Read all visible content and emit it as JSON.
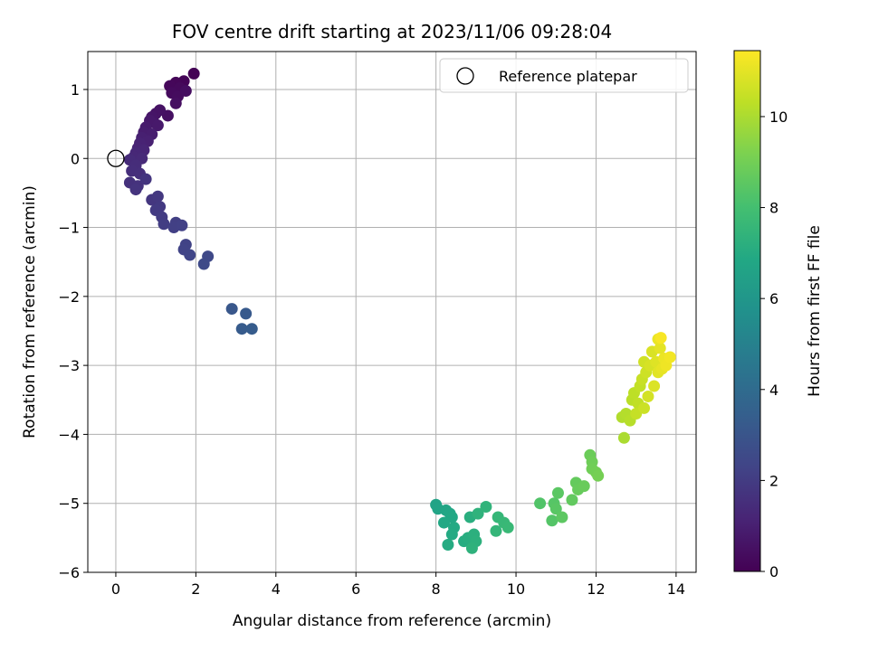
{
  "chart_data": {
    "type": "scatter",
    "title": "FOV centre drift starting at 2023/11/06 09:28:04",
    "xlabel": "Angular distance from reference (arcmin)",
    "ylabel": "Rotation from reference (arcmin)",
    "xlim": [
      -0.7,
      14.5
    ],
    "ylim": [
      -6.0,
      1.55
    ],
    "xticks": [
      0,
      2,
      4,
      6,
      8,
      10,
      12,
      14
    ],
    "yticks": [
      1,
      0,
      -1,
      -2,
      -3,
      -4,
      -5,
      -6
    ],
    "xtick_labels": [
      "0",
      "2",
      "4",
      "6",
      "8",
      "10",
      "12",
      "14"
    ],
    "ytick_labels": [
      "1",
      "0",
      "−1",
      "−2",
      "−3",
      "−4",
      "−5",
      "−6"
    ],
    "grid": true,
    "legend": {
      "position": "top-right",
      "entries": [
        {
          "label": "Reference platepar",
          "marker": "open-circle"
        }
      ]
    },
    "reference_point": {
      "x": 0,
      "y": 0,
      "name": "Reference platepar"
    },
    "colorbar": {
      "label": "Hours from first FF file",
      "range": [
        0,
        11.45
      ],
      "ticks": [
        0,
        2,
        4,
        6,
        8,
        10
      ],
      "tick_labels": [
        "0",
        "2",
        "4",
        "6",
        "8",
        "10"
      ],
      "colormap": "viridis"
    },
    "points": [
      {
        "x": 1.95,
        "y": 1.23,
        "h": 0.05
      },
      {
        "x": 1.7,
        "y": 1.12,
        "h": 0.1
      },
      {
        "x": 1.5,
        "y": 1.1,
        "h": 0.15
      },
      {
        "x": 1.35,
        "y": 1.05,
        "h": 0.2
      },
      {
        "x": 1.6,
        "y": 1.02,
        "h": 0.25
      },
      {
        "x": 1.4,
        "y": 0.95,
        "h": 0.3
      },
      {
        "x": 1.55,
        "y": 0.9,
        "h": 0.35
      },
      {
        "x": 1.75,
        "y": 0.98,
        "h": 0.4
      },
      {
        "x": 1.5,
        "y": 0.8,
        "h": 0.45
      },
      {
        "x": 1.3,
        "y": 0.62,
        "h": 0.5
      },
      {
        "x": 1.1,
        "y": 0.7,
        "h": 0.55
      },
      {
        "x": 1.0,
        "y": 0.65,
        "h": 0.6
      },
      {
        "x": 0.9,
        "y": 0.6,
        "h": 0.65
      },
      {
        "x": 0.95,
        "y": 0.52,
        "h": 0.7
      },
      {
        "x": 0.85,
        "y": 0.55,
        "h": 0.75
      },
      {
        "x": 1.05,
        "y": 0.48,
        "h": 0.8
      },
      {
        "x": 0.75,
        "y": 0.45,
        "h": 0.85
      },
      {
        "x": 0.7,
        "y": 0.38,
        "h": 0.9
      },
      {
        "x": 0.9,
        "y": 0.35,
        "h": 0.95
      },
      {
        "x": 0.65,
        "y": 0.3,
        "h": 1.0
      },
      {
        "x": 0.8,
        "y": 0.25,
        "h": 1.05
      },
      {
        "x": 0.6,
        "y": 0.22,
        "h": 1.1
      },
      {
        "x": 0.55,
        "y": 0.15,
        "h": 1.15
      },
      {
        "x": 0.7,
        "y": 0.12,
        "h": 1.2
      },
      {
        "x": 0.5,
        "y": 0.08,
        "h": 1.25
      },
      {
        "x": 0.45,
        "y": 0.02,
        "h": 1.3
      },
      {
        "x": 0.65,
        "y": 0.0,
        "h": 1.35
      },
      {
        "x": 0.35,
        "y": -0.02,
        "h": 1.4
      },
      {
        "x": 0.5,
        "y": -0.1,
        "h": 1.45
      },
      {
        "x": 0.4,
        "y": -0.18,
        "h": 1.5
      },
      {
        "x": 0.6,
        "y": -0.22,
        "h": 1.55
      },
      {
        "x": 0.35,
        "y": -0.35,
        "h": 1.6
      },
      {
        "x": 0.55,
        "y": -0.4,
        "h": 1.65
      },
      {
        "x": 0.5,
        "y": -0.45,
        "h": 1.7
      },
      {
        "x": 0.75,
        "y": -0.3,
        "h": 1.75
      },
      {
        "x": 0.9,
        "y": -0.6,
        "h": 1.8
      },
      {
        "x": 1.05,
        "y": -0.55,
        "h": 1.85
      },
      {
        "x": 1.1,
        "y": -0.7,
        "h": 1.9
      },
      {
        "x": 1.0,
        "y": -0.75,
        "h": 1.95
      },
      {
        "x": 1.15,
        "y": -0.85,
        "h": 2.0
      },
      {
        "x": 1.2,
        "y": -0.95,
        "h": 2.05
      },
      {
        "x": 1.5,
        "y": -0.93,
        "h": 2.1
      },
      {
        "x": 1.45,
        "y": -1.0,
        "h": 2.15
      },
      {
        "x": 1.65,
        "y": -0.97,
        "h": 2.2
      },
      {
        "x": 1.75,
        "y": -1.25,
        "h": 2.25
      },
      {
        "x": 1.7,
        "y": -1.32,
        "h": 2.3
      },
      {
        "x": 1.85,
        "y": -1.4,
        "h": 2.35
      },
      {
        "x": 2.3,
        "y": -1.42,
        "h": 2.5
      },
      {
        "x": 2.2,
        "y": -1.53,
        "h": 2.55
      },
      {
        "x": 2.9,
        "y": -2.18,
        "h": 3.1
      },
      {
        "x": 3.25,
        "y": -2.25,
        "h": 3.2
      },
      {
        "x": 3.15,
        "y": -2.47,
        "h": 3.25
      },
      {
        "x": 3.4,
        "y": -2.47,
        "h": 3.3
      },
      {
        "x": 8.0,
        "y": -5.02,
        "h": 6.6
      },
      {
        "x": 8.05,
        "y": -5.08,
        "h": 6.65
      },
      {
        "x": 8.25,
        "y": -5.1,
        "h": 6.7
      },
      {
        "x": 8.35,
        "y": -5.15,
        "h": 6.75
      },
      {
        "x": 8.4,
        "y": -5.2,
        "h": 6.8
      },
      {
        "x": 8.2,
        "y": -5.28,
        "h": 6.85
      },
      {
        "x": 8.45,
        "y": -5.35,
        "h": 6.9
      },
      {
        "x": 8.4,
        "y": -5.45,
        "h": 6.95
      },
      {
        "x": 8.3,
        "y": -5.6,
        "h": 7.0
      },
      {
        "x": 8.7,
        "y": -5.55,
        "h": 7.05
      },
      {
        "x": 8.8,
        "y": -5.5,
        "h": 7.1
      },
      {
        "x": 8.85,
        "y": -5.2,
        "h": 7.15
      },
      {
        "x": 8.95,
        "y": -5.45,
        "h": 7.2
      },
      {
        "x": 9.0,
        "y": -5.55,
        "h": 7.25
      },
      {
        "x": 8.9,
        "y": -5.65,
        "h": 7.3
      },
      {
        "x": 9.05,
        "y": -5.15,
        "h": 7.35
      },
      {
        "x": 9.25,
        "y": -5.05,
        "h": 7.4
      },
      {
        "x": 9.5,
        "y": -5.4,
        "h": 7.5
      },
      {
        "x": 9.55,
        "y": -5.2,
        "h": 7.55
      },
      {
        "x": 9.7,
        "y": -5.28,
        "h": 7.6
      },
      {
        "x": 9.8,
        "y": -5.35,
        "h": 7.65
      },
      {
        "x": 10.6,
        "y": -5.0,
        "h": 8.3
      },
      {
        "x": 10.9,
        "y": -5.25,
        "h": 8.35
      },
      {
        "x": 10.95,
        "y": -5.0,
        "h": 8.4
      },
      {
        "x": 11.0,
        "y": -5.08,
        "h": 8.45
      },
      {
        "x": 11.05,
        "y": -4.85,
        "h": 8.5
      },
      {
        "x": 11.15,
        "y": -5.2,
        "h": 8.55
      },
      {
        "x": 11.4,
        "y": -4.95,
        "h": 8.65
      },
      {
        "x": 11.5,
        "y": -4.7,
        "h": 8.7
      },
      {
        "x": 11.55,
        "y": -4.8,
        "h": 8.75
      },
      {
        "x": 11.7,
        "y": -4.75,
        "h": 8.8
      },
      {
        "x": 11.85,
        "y": -4.3,
        "h": 8.85
      },
      {
        "x": 11.9,
        "y": -4.4,
        "h": 8.9
      },
      {
        "x": 11.9,
        "y": -4.5,
        "h": 8.95
      },
      {
        "x": 12.0,
        "y": -4.55,
        "h": 9.0
      },
      {
        "x": 12.05,
        "y": -4.6,
        "h": 9.05
      },
      {
        "x": 12.7,
        "y": -4.05,
        "h": 10.0
      },
      {
        "x": 12.65,
        "y": -3.75,
        "h": 10.1
      },
      {
        "x": 12.75,
        "y": -3.7,
        "h": 10.15
      },
      {
        "x": 12.85,
        "y": -3.8,
        "h": 10.2
      },
      {
        "x": 12.9,
        "y": -3.5,
        "h": 10.25
      },
      {
        "x": 12.95,
        "y": -3.4,
        "h": 10.3
      },
      {
        "x": 13.05,
        "y": -3.55,
        "h": 10.35
      },
      {
        "x": 13.1,
        "y": -3.3,
        "h": 10.4
      },
      {
        "x": 13.0,
        "y": -3.7,
        "h": 10.45
      },
      {
        "x": 13.15,
        "y": -3.2,
        "h": 10.5
      },
      {
        "x": 13.2,
        "y": -3.62,
        "h": 10.55
      },
      {
        "x": 13.25,
        "y": -3.1,
        "h": 10.6
      },
      {
        "x": 13.2,
        "y": -2.95,
        "h": 10.65
      },
      {
        "x": 13.3,
        "y": -3.45,
        "h": 10.7
      },
      {
        "x": 13.35,
        "y": -3.0,
        "h": 10.75
      },
      {
        "x": 13.4,
        "y": -2.8,
        "h": 10.8
      },
      {
        "x": 13.45,
        "y": -3.3,
        "h": 10.85
      },
      {
        "x": 13.5,
        "y": -2.95,
        "h": 10.9
      },
      {
        "x": 13.55,
        "y": -3.1,
        "h": 10.95
      },
      {
        "x": 13.6,
        "y": -2.75,
        "h": 11.0
      },
      {
        "x": 13.65,
        "y": -3.05,
        "h": 11.05
      },
      {
        "x": 13.55,
        "y": -2.62,
        "h": 11.1
      },
      {
        "x": 13.7,
        "y": -2.9,
        "h": 11.15
      },
      {
        "x": 13.75,
        "y": -3.0,
        "h": 11.2
      },
      {
        "x": 13.85,
        "y": -2.88,
        "h": 11.25
      },
      {
        "x": 13.62,
        "y": -2.6,
        "h": 11.35
      }
    ]
  }
}
